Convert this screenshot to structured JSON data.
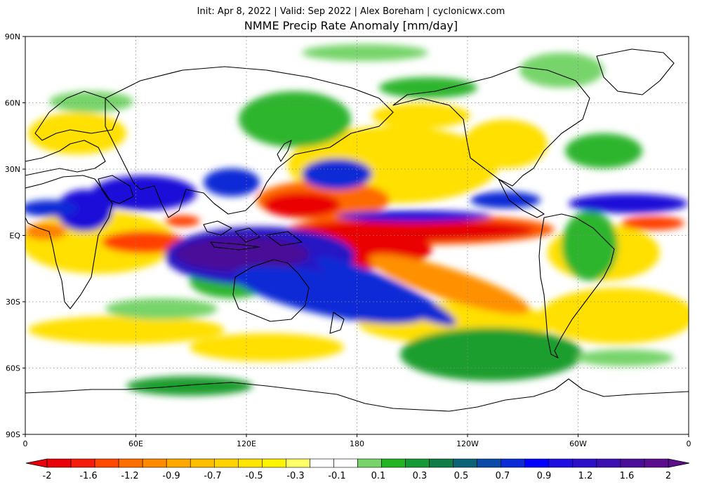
{
  "header": {
    "subtitle": "Init: Apr 8, 2022 | Valid: Sep 2022 | Alex Boreham | cyclonicwx.com",
    "title": "NMME Precip Rate Anomaly [mm/day]"
  },
  "map": {
    "projection": "equirectangular",
    "lon_range": [
      0,
      360
    ],
    "lat_range": [
      -90,
      90
    ],
    "grid_lines": "dotted",
    "y_ticks": [
      "90N",
      "60N",
      "30N",
      "EQ",
      "30S",
      "60S",
      "90S"
    ],
    "x_ticks": [
      "0",
      "60E",
      "120E",
      "180",
      "120W",
      "60W",
      "0"
    ],
    "anomaly_features": [
      {
        "name": "central-pacific-dry",
        "lon": 185,
        "lat": 5,
        "value": -2
      },
      {
        "name": "southeast-pacific-dry",
        "lon": 195,
        "lat": -10,
        "value": -2
      },
      {
        "name": "northwest-pacific-dry",
        "lon": 158,
        "lat": 15,
        "value": -1.6
      },
      {
        "name": "equatorial-indian-ocean-dry",
        "lon": 60,
        "lat": -3,
        "value": -1.6
      },
      {
        "name": "equatorial-atlantic-dry",
        "lon": 345,
        "lat": 2,
        "value": -1.2
      },
      {
        "name": "maritime-continent-wet",
        "lon": 110,
        "lat": -8,
        "value": 2
      },
      {
        "name": "australia-southwest-pacific-wet",
        "lon": 150,
        "lat": -28,
        "value": 1.2
      },
      {
        "name": "indian-monsoon-wet",
        "lon": 80,
        "lat": 18,
        "value": 1.2
      },
      {
        "name": "north-pacific-subtropical-wet",
        "lon": 175,
        "lat": 28,
        "value": 0.9
      },
      {
        "name": "central-america-wet",
        "lon": 270,
        "lat": 14,
        "value": 0.9
      },
      {
        "name": "atlantic-itcz-wet",
        "lon": 320,
        "lat": 13,
        "value": 1.2
      },
      {
        "name": "sahel-wet",
        "lon": 10,
        "lat": 14,
        "value": 0.9
      },
      {
        "name": "southeast-pacific-midlat-wet",
        "lon": 245,
        "lat": -55,
        "value": 0.5
      }
    ]
  },
  "colorbar": {
    "labels": [
      "-2",
      "-1.6",
      "-1.2",
      "-0.9",
      "-0.7",
      "-0.5",
      "-0.3",
      "-0.1",
      "0.1",
      "0.3",
      "0.5",
      "0.7",
      "0.9",
      "1.2",
      "1.6",
      "2"
    ],
    "colors": [
      "#e8000a",
      "#f61c0c",
      "#ff4a00",
      "#ff6f00",
      "#ff8a00",
      "#ffa800",
      "#ffbf00",
      "#ffd200",
      "#ffe600",
      "#fff500",
      "#ffff66",
      "#ffffff",
      "#ffffff",
      "#77d46a",
      "#21b521",
      "#159a35",
      "#0f7d45",
      "#0a6478",
      "#0c4aa8",
      "#0a2bd6",
      "#0000ff",
      "#1e0fe0",
      "#2b10c8",
      "#3b0fb0",
      "#4b0e98",
      "#5a0e8c"
    ],
    "under_color": "#e8000a",
    "over_color": "#5a0e8c"
  }
}
